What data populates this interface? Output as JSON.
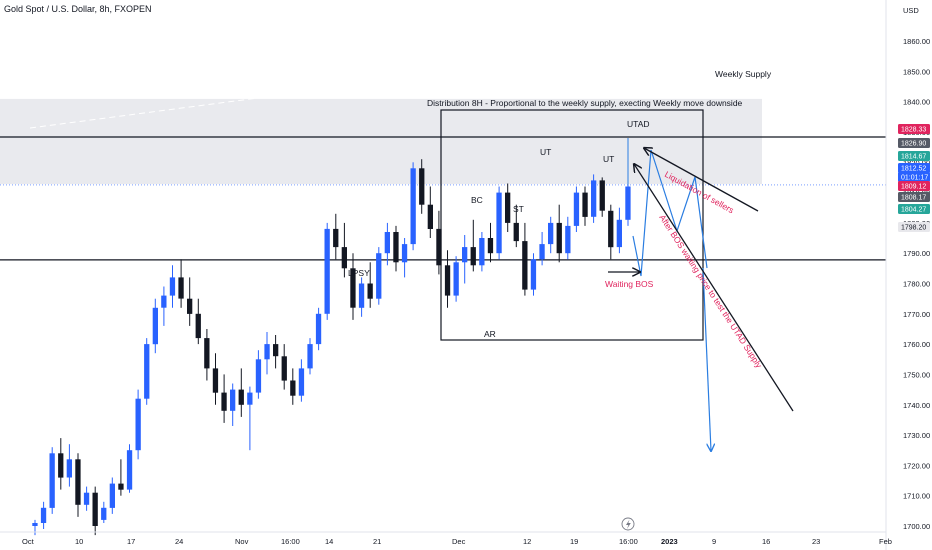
{
  "header": {
    "symbol_title": "Gold Spot / U.S. Dollar, 8h, FXOPEN"
  },
  "price_scale": {
    "currency": "USD",
    "ticks": [
      1860,
      1850,
      1840,
      1830,
      1820,
      1810,
      1800,
      1790,
      1780,
      1770,
      1760,
      1750,
      1740,
      1730,
      1720,
      1710,
      1700
    ],
    "tick_labels": [
      "1860.00",
      "1850.00",
      "1840.00",
      "1830.00",
      "1820.00",
      "1810.00",
      "1800.00",
      "1790.00",
      "1780.00",
      "1770.00",
      "1760.00",
      "1750.00",
      "1740.00",
      "1730.00",
      "1720.00",
      "1710.00",
      "1700.00"
    ],
    "badges": [
      {
        "text": "1828.33",
        "value": 1828.33,
        "bg": "#e0245e",
        "color": "#ffffff"
      },
      {
        "text": "1826.90",
        "value": 1826.9,
        "bg": "#555a66",
        "color": "#ffffff"
      },
      {
        "text": "1814.67",
        "value": 1814.67,
        "bg": "#26a69a",
        "color": "#ffffff"
      },
      {
        "text": "1812.52",
        "value": 1812.52,
        "bg": "#2962ff",
        "color": "#ffffff"
      },
      {
        "text": "01:01:17",
        "value": 1810.8,
        "bg": "#2962ff",
        "color": "#ffffff"
      },
      {
        "text": "1809.12",
        "value": 1809.12,
        "bg": "#e0245e",
        "color": "#ffffff"
      },
      {
        "text": "1808.17",
        "value": 1808.17,
        "bg": "#555a66",
        "color": "#ffffff"
      },
      {
        "text": "1804.27",
        "value": 1804.27,
        "bg": "#26a69a",
        "color": "#ffffff"
      },
      {
        "text": "1798.20",
        "value": 1798.2,
        "bg": "#e8e8ec",
        "color": "#131722"
      }
    ]
  },
  "time_scale": {
    "labels": [
      "Oct",
      "10",
      "17",
      "24",
      "Nov",
      "16:00",
      "14",
      "21",
      "Dec",
      "12",
      "19",
      "16:00",
      "2023",
      "9",
      "16",
      "23",
      "Feb"
    ]
  },
  "annotations": {
    "weekly_supply": "Weekly Supply",
    "distribution_note": "Distribution 8H - Proportional to the weekly supply, execting Weekly move downside",
    "utad": "UTAD",
    "ut1": "UT",
    "ut2": "UT",
    "bc": "BC",
    "st": "ST",
    "ar": "AR",
    "lpsy": "LPSY",
    "waiting_bos": "Waiting BOS",
    "liquidation": "Liquidation of sellers",
    "after_bos": "After BOS waiting price to test the UTAD Supply"
  },
  "colors": {
    "up_candle": "#2962ff",
    "down_candle": "#131722",
    "annotation_red": "#e0245e",
    "projection_blue": "#2a7de1",
    "supply_zone": "#e9eaee",
    "current_price_line": "#2962ff"
  },
  "icons": {
    "lightning": "lightning-icon"
  },
  "chart_data": {
    "type": "candlestick",
    "title": "Gold Spot / U.S. Dollar, 8h, FXOPEN",
    "xlabel": "",
    "ylabel": "USD",
    "ylim": [
      1698,
      1867
    ],
    "grid": false,
    "levels": {
      "weekly_supply_zone": [
        1812.8,
        1840.9
      ],
      "horizontal_upper": 1828.33,
      "horizontal_lower": 1787.8,
      "current_price": 1812.52
    },
    "candles": [
      {
        "o": 1700,
        "h": 1702,
        "l": 1697,
        "c": 1701
      },
      {
        "o": 1701,
        "h": 1708,
        "l": 1699,
        "c": 1706
      },
      {
        "o": 1706,
        "h": 1726,
        "l": 1704,
        "c": 1724
      },
      {
        "o": 1724,
        "h": 1729,
        "l": 1712,
        "c": 1716
      },
      {
        "o": 1716,
        "h": 1727,
        "l": 1713,
        "c": 1722
      },
      {
        "o": 1722,
        "h": 1724,
        "l": 1703,
        "c": 1707
      },
      {
        "o": 1707,
        "h": 1713,
        "l": 1705,
        "c": 1711
      },
      {
        "o": 1711,
        "h": 1713,
        "l": 1697,
        "c": 1700
      },
      {
        "o": 1702,
        "h": 1708,
        "l": 1701,
        "c": 1706
      },
      {
        "o": 1706,
        "h": 1716,
        "l": 1704,
        "c": 1714
      },
      {
        "o": 1714,
        "h": 1722,
        "l": 1710,
        "c": 1712
      },
      {
        "o": 1712,
        "h": 1727,
        "l": 1711,
        "c": 1725
      },
      {
        "o": 1725,
        "h": 1745,
        "l": 1722,
        "c": 1742
      },
      {
        "o": 1742,
        "h": 1762,
        "l": 1740,
        "c": 1760
      },
      {
        "o": 1760,
        "h": 1775,
        "l": 1757,
        "c": 1772
      },
      {
        "o": 1772,
        "h": 1779,
        "l": 1766,
        "c": 1776
      },
      {
        "o": 1776,
        "h": 1786,
        "l": 1772,
        "c": 1782
      },
      {
        "o": 1782,
        "h": 1788,
        "l": 1772,
        "c": 1775
      },
      {
        "o": 1775,
        "h": 1782,
        "l": 1766,
        "c": 1770
      },
      {
        "o": 1770,
        "h": 1775,
        "l": 1760,
        "c": 1762
      },
      {
        "o": 1762,
        "h": 1765,
        "l": 1748,
        "c": 1752
      },
      {
        "o": 1752,
        "h": 1757,
        "l": 1740,
        "c": 1744
      },
      {
        "o": 1744,
        "h": 1750,
        "l": 1734,
        "c": 1738
      },
      {
        "o": 1738,
        "h": 1747,
        "l": 1733,
        "c": 1745
      },
      {
        "o": 1745,
        "h": 1752,
        "l": 1736,
        "c": 1740
      },
      {
        "o": 1740,
        "h": 1746,
        "l": 1725,
        "c": 1744
      },
      {
        "o": 1744,
        "h": 1758,
        "l": 1742,
        "c": 1755
      },
      {
        "o": 1755,
        "h": 1764,
        "l": 1750,
        "c": 1760
      },
      {
        "o": 1760,
        "h": 1763,
        "l": 1752,
        "c": 1756
      },
      {
        "o": 1756,
        "h": 1760,
        "l": 1745,
        "c": 1748
      },
      {
        "o": 1748,
        "h": 1752,
        "l": 1740,
        "c": 1743
      },
      {
        "o": 1743,
        "h": 1755,
        "l": 1741,
        "c": 1752
      },
      {
        "o": 1752,
        "h": 1762,
        "l": 1750,
        "c": 1760
      },
      {
        "o": 1760,
        "h": 1772,
        "l": 1758,
        "c": 1770
      },
      {
        "o": 1770,
        "h": 1800,
        "l": 1768,
        "c": 1798
      },
      {
        "o": 1798,
        "h": 1803,
        "l": 1788,
        "c": 1792
      },
      {
        "o": 1792,
        "h": 1800,
        "l": 1782,
        "c": 1785
      },
      {
        "o": 1785,
        "h": 1790,
        "l": 1768,
        "c": 1772
      },
      {
        "o": 1772,
        "h": 1782,
        "l": 1769,
        "c": 1780
      },
      {
        "o": 1780,
        "h": 1787,
        "l": 1772,
        "c": 1775
      },
      {
        "o": 1775,
        "h": 1792,
        "l": 1773,
        "c": 1790
      },
      {
        "o": 1790,
        "h": 1800,
        "l": 1786,
        "c": 1797
      },
      {
        "o": 1797,
        "h": 1799,
        "l": 1784,
        "c": 1787
      },
      {
        "o": 1787,
        "h": 1795,
        "l": 1782,
        "c": 1793
      },
      {
        "o": 1793,
        "h": 1820,
        "l": 1791,
        "c": 1818
      },
      {
        "o": 1818,
        "h": 1821,
        "l": 1803,
        "c": 1806
      },
      {
        "o": 1806,
        "h": 1812,
        "l": 1795,
        "c": 1798
      },
      {
        "o": 1798,
        "h": 1804,
        "l": 1783,
        "c": 1786
      },
      {
        "o": 1786,
        "h": 1791,
        "l": 1772,
        "c": 1776
      },
      {
        "o": 1776,
        "h": 1789,
        "l": 1774,
        "c": 1787
      },
      {
        "o": 1787,
        "h": 1796,
        "l": 1780,
        "c": 1792
      },
      {
        "o": 1792,
        "h": 1801,
        "l": 1784,
        "c": 1786
      },
      {
        "o": 1786,
        "h": 1797,
        "l": 1784,
        "c": 1795
      },
      {
        "o": 1795,
        "h": 1800,
        "l": 1787,
        "c": 1790
      },
      {
        "o": 1790,
        "h": 1812,
        "l": 1788,
        "c": 1810
      },
      {
        "o": 1810,
        "h": 1813,
        "l": 1797,
        "c": 1800
      },
      {
        "o": 1800,
        "h": 1806,
        "l": 1792,
        "c": 1794
      },
      {
        "o": 1794,
        "h": 1800,
        "l": 1776,
        "c": 1778
      },
      {
        "o": 1778,
        "h": 1790,
        "l": 1776,
        "c": 1788
      },
      {
        "o": 1788,
        "h": 1797,
        "l": 1786,
        "c": 1793
      },
      {
        "o": 1793,
        "h": 1802,
        "l": 1790,
        "c": 1800
      },
      {
        "o": 1800,
        "h": 1806,
        "l": 1787,
        "c": 1790
      },
      {
        "o": 1790,
        "h": 1802,
        "l": 1788,
        "c": 1799
      },
      {
        "o": 1799,
        "h": 1812,
        "l": 1797,
        "c": 1810
      },
      {
        "o": 1810,
        "h": 1812,
        "l": 1799,
        "c": 1802
      },
      {
        "o": 1802,
        "h": 1816,
        "l": 1800,
        "c": 1814
      },
      {
        "o": 1814,
        "h": 1815,
        "l": 1802,
        "c": 1804
      },
      {
        "o": 1804,
        "h": 1806,
        "l": 1788,
        "c": 1792
      },
      {
        "o": 1792,
        "h": 1805,
        "l": 1790,
        "c": 1801
      },
      {
        "o": 1801,
        "h": 1814,
        "l": 1799,
        "c": 1812
      }
    ]
  }
}
